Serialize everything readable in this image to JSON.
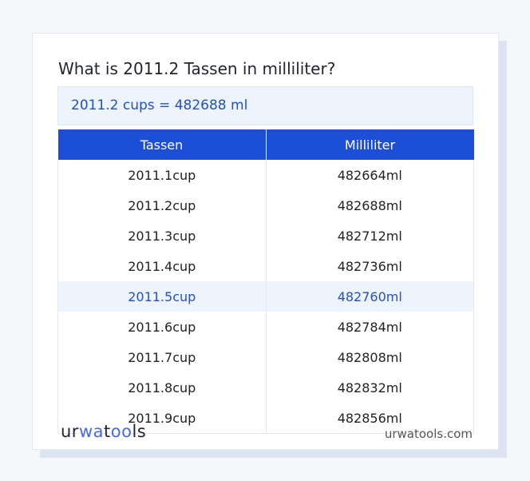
{
  "title": "What is 2011.2 Tassen in milliliter?",
  "result": "2011.2 cups = 482688 ml",
  "table": {
    "headers": [
      "Tassen",
      "Milliliter"
    ],
    "rows": [
      [
        "2011.1cup",
        "482664ml"
      ],
      [
        "2011.2cup",
        "482688ml"
      ],
      [
        "2011.3cup",
        "482712ml"
      ],
      [
        "2011.4cup",
        "482736ml"
      ],
      [
        "2011.5cup",
        "482760ml"
      ],
      [
        "2011.6cup",
        "482784ml"
      ],
      [
        "2011.7cup",
        "482808ml"
      ],
      [
        "2011.8cup",
        "482832ml"
      ],
      [
        "2011.9cup",
        "482856ml"
      ]
    ],
    "highlighted_row": 4
  },
  "footer": {
    "logo": "urwatools",
    "site": "urwatools.com"
  },
  "colors": {
    "accent": "#1d4ed8",
    "highlight_bg": "#edf4fe"
  }
}
